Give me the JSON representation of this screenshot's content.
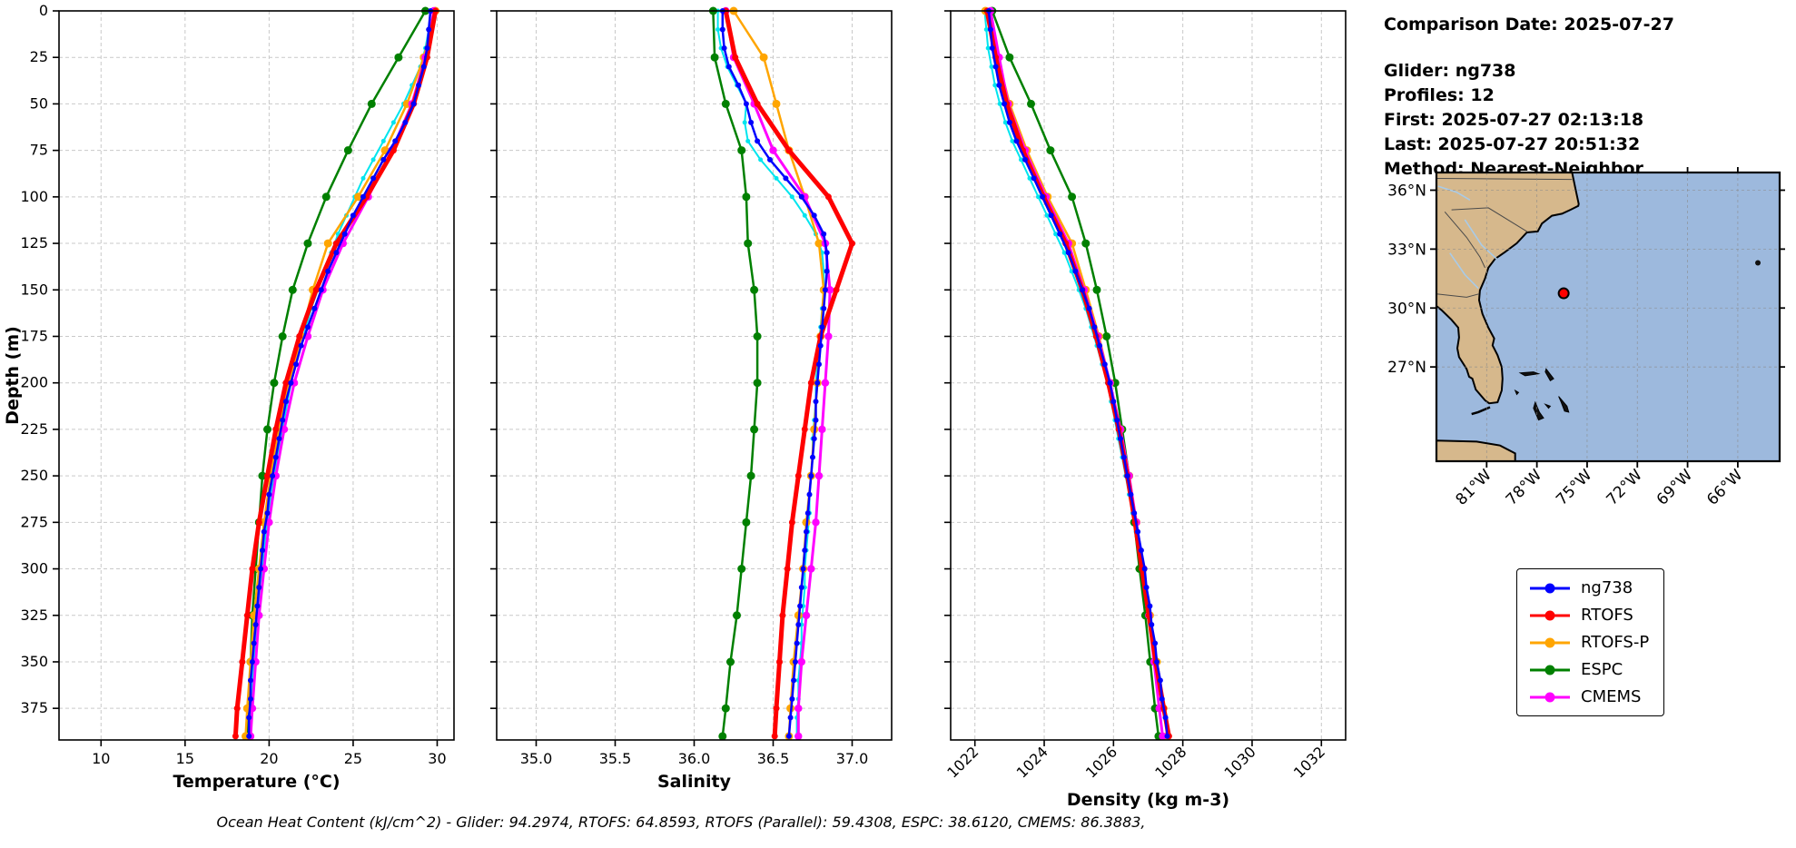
{
  "info_panel": {
    "comparison_date": "Comparison Date: 2025-07-27",
    "glider": "Glider: ng738",
    "profiles": "Profiles: 12",
    "first": "First: 2025-07-27 02:13:18",
    "last": "Last: 2025-07-27 20:51:32",
    "method": "Method: Nearest-Neighbor"
  },
  "legend": {
    "items": [
      {
        "label": "ng738",
        "color": "#0000ff"
      },
      {
        "label": "RTOFS",
        "color": "#ff0000"
      },
      {
        "label": "RTOFS-P",
        "color": "#ffa500"
      },
      {
        "label": "ESPC",
        "color": "#008000"
      },
      {
        "label": "CMEMS",
        "color": "#ff00ff"
      }
    ]
  },
  "caption": "Ocean Heat Content (kJ/cm^2) - Glider: 94.2974,  RTOFS: 64.8593,  RTOFS (Parallel): 59.4308,  ESPC: 38.6120,  CMEMS: 86.3883,",
  "chart_data": {
    "type": "line",
    "description": "Glider-vs-model vertical profiles; depth on y axis increasing downward",
    "ylabel": "Depth (m)",
    "ylim": [
      0,
      392
    ],
    "yticks": [
      0,
      25,
      50,
      75,
      100,
      125,
      150,
      175,
      200,
      225,
      250,
      275,
      300,
      325,
      350,
      375
    ],
    "depths_fine": [
      0,
      10,
      20,
      30,
      40,
      50,
      60,
      70,
      80,
      90,
      100,
      110,
      120,
      130,
      140,
      150,
      160,
      170,
      180,
      190,
      200,
      210,
      220,
      230,
      240,
      250,
      260,
      270,
      280,
      290,
      300,
      310,
      320,
      330,
      340,
      350,
      360,
      370,
      380,
      390
    ],
    "depths_coarse": [
      0,
      25,
      50,
      75,
      100,
      125,
      150,
      175,
      200,
      225,
      250,
      275,
      300,
      325,
      350,
      375,
      390
    ],
    "panels": [
      {
        "xlabel": "Temperature (°C)",
        "xlim": [
          7.5,
          31
        ],
        "xticks": [
          10,
          15,
          20,
          25,
          30
        ],
        "xtick_labels": [
          "10",
          "15",
          "20",
          "25",
          "30"
        ],
        "rotate_xticks": false,
        "series": [
          {
            "name": "ng738-raw",
            "color": "#00e5ee",
            "depths": "fine",
            "lw": 2,
            "r": 2.5,
            "values": [
              29.6,
              29.5,
              29.3,
              29.0,
              28.5,
              28.0,
              27.4,
              26.8,
              26.2,
              25.6,
              25.1,
              24.6,
              24.1,
              23.7,
              23.3,
              22.9,
              22.5,
              22.2,
              21.9,
              21.6,
              21.3,
              21.1,
              20.9,
              20.7,
              20.5,
              20.3,
              20.1,
              20.0,
              19.8,
              19.7,
              19.6,
              19.5,
              19.4,
              19.3,
              19.2,
              19.1,
              19.0,
              19.0,
              18.9,
              18.9
            ]
          },
          {
            "name": "ESPC",
            "color": "#008000",
            "depths": "coarse",
            "lw": 2.5,
            "r": 4.5,
            "values": [
              29.3,
              27.7,
              26.1,
              24.7,
              23.4,
              22.3,
              21.4,
              20.8,
              20.3,
              19.9,
              19.6,
              19.4,
              19.2,
              19.0,
              18.9,
              18.8,
              18.7
            ]
          },
          {
            "name": "RTOFS-P",
            "color": "#ffa500",
            "depths": "coarse",
            "lw": 2.5,
            "r": 4.5,
            "values": [
              29.9,
              29.2,
              28.2,
              26.9,
              25.3,
              23.5,
              22.6,
              21.9,
              21.2,
              20.6,
              20.1,
              19.7,
              19.4,
              19.1,
              18.9,
              18.7,
              18.6
            ]
          },
          {
            "name": "CMEMS",
            "color": "#ff00ff",
            "depths": "coarse",
            "lw": 3,
            "r": 4.2,
            "values": [
              29.8,
              29.3,
              28.5,
              27.3,
              25.9,
              24.4,
              23.2,
              22.3,
              21.5,
              20.9,
              20.4,
              20.0,
              19.7,
              19.4,
              19.2,
              19.0,
              18.9
            ]
          },
          {
            "name": "RTOFS",
            "color": "#ff0000",
            "depths": "coarse",
            "lw": 5,
            "r": 3.5,
            "values": [
              29.9,
              29.4,
              28.6,
              27.4,
              25.8,
              24.0,
              22.8,
              21.8,
              21.0,
              20.4,
              19.9,
              19.4,
              19.0,
              18.7,
              18.4,
              18.1,
              18.0
            ]
          },
          {
            "name": "ng738",
            "color": "#0000ff",
            "depths": "fine",
            "lw": 2.5,
            "r": 3,
            "values": [
              29.6,
              29.5,
              29.4,
              29.2,
              28.9,
              28.6,
              28.1,
              27.5,
              26.8,
              26.2,
              25.6,
              25.0,
              24.5,
              24.0,
              23.5,
              23.1,
              22.7,
              22.3,
              21.9,
              21.6,
              21.3,
              21.0,
              20.8,
              20.6,
              20.4,
              20.2,
              20.0,
              19.9,
              19.7,
              19.6,
              19.5,
              19.4,
              19.3,
              19.2,
              19.1,
              19.0,
              18.9,
              18.9,
              18.8,
              18.8
            ]
          }
        ]
      },
      {
        "xlabel": "Salinity",
        "xlim": [
          34.75,
          37.25
        ],
        "xticks": [
          35.0,
          35.5,
          36.0,
          36.5,
          37.0
        ],
        "xtick_labels": [
          "35.0",
          "35.5",
          "36.0",
          "36.5",
          "37.0"
        ],
        "rotate_xticks": false,
        "series": [
          {
            "name": "ng738-raw",
            "color": "#00e5ee",
            "depths": "fine",
            "lw": 2,
            "r": 2.5,
            "values": [
              36.15,
              36.15,
              36.17,
              36.21,
              36.27,
              36.33,
              36.32,
              36.34,
              36.42,
              36.52,
              36.62,
              36.7,
              36.77,
              36.81,
              36.82,
              36.82,
              36.81,
              36.8,
              36.79,
              36.78,
              36.77,
              36.77,
              36.76,
              36.75,
              36.75,
              36.74,
              36.73,
              36.73,
              36.72,
              36.71,
              36.7,
              36.7,
              36.69,
              36.68,
              36.68,
              36.67,
              36.66,
              36.66,
              36.65,
              36.65
            ]
          },
          {
            "name": "ESPC",
            "color": "#008000",
            "depths": "coarse",
            "lw": 2.5,
            "r": 4.5,
            "values": [
              36.12,
              36.13,
              36.2,
              36.3,
              36.33,
              36.34,
              36.38,
              36.4,
              36.4,
              36.38,
              36.36,
              36.33,
              36.3,
              36.27,
              36.23,
              36.2,
              36.18
            ]
          },
          {
            "name": "RTOFS-P",
            "color": "#ffa500",
            "depths": "coarse",
            "lw": 2.5,
            "r": 4.5,
            "values": [
              36.25,
              36.44,
              36.52,
              36.6,
              36.7,
              36.79,
              36.82,
              36.8,
              36.78,
              36.76,
              36.74,
              36.71,
              36.69,
              36.66,
              36.63,
              36.61,
              36.6
            ]
          },
          {
            "name": "CMEMS",
            "color": "#ff00ff",
            "depths": "coarse",
            "lw": 3,
            "r": 4.2,
            "values": [
              36.2,
              36.25,
              36.38,
              36.5,
              36.7,
              36.83,
              36.86,
              36.85,
              36.83,
              36.81,
              36.79,
              36.77,
              36.74,
              36.71,
              36.68,
              36.66,
              36.66
            ]
          },
          {
            "name": "RTOFS",
            "color": "#ff0000",
            "depths": "coarse",
            "lw": 5,
            "r": 3.5,
            "values": [
              36.2,
              36.26,
              36.4,
              36.6,
              36.85,
              37.0,
              36.9,
              36.8,
              36.74,
              36.7,
              36.66,
              36.62,
              36.59,
              36.56,
              36.54,
              36.52,
              36.51
            ]
          },
          {
            "name": "ng738",
            "color": "#0000ff",
            "depths": "fine",
            "lw": 2.5,
            "r": 3,
            "values": [
              36.18,
              36.18,
              36.19,
              36.22,
              36.28,
              36.33,
              36.36,
              36.4,
              36.48,
              36.58,
              36.68,
              36.76,
              36.82,
              36.84,
              36.84,
              36.83,
              36.82,
              36.81,
              36.8,
              36.79,
              36.78,
              36.77,
              36.77,
              36.76,
              36.75,
              36.74,
              36.73,
              36.72,
              36.71,
              36.7,
              36.69,
              36.68,
              36.67,
              36.66,
              36.65,
              36.64,
              36.63,
              36.62,
              36.61,
              36.6
            ]
          }
        ]
      },
      {
        "xlabel": "Density (kg m-3)",
        "xlim": [
          1021.3,
          1032.7
        ],
        "xticks": [
          1022,
          1024,
          1026,
          1028,
          1030,
          1032
        ],
        "xtick_labels": [
          "1022",
          "1024",
          "1026",
          "1028",
          "1030",
          "1032"
        ],
        "rotate_xticks": true,
        "series": [
          {
            "name": "ng738-raw",
            "color": "#00e5ee",
            "depths": "fine",
            "lw": 2,
            "r": 2.5,
            "values": [
              1022.28,
              1022.33,
              1022.38,
              1022.48,
              1022.58,
              1022.72,
              1022.88,
              1023.08,
              1023.33,
              1023.58,
              1023.83,
              1024.08,
              1024.33,
              1024.58,
              1024.79,
              1025.0,
              1025.2,
              1025.36,
              1025.52,
              1025.67,
              1025.82,
              1025.93,
              1026.04,
              1026.14,
              1026.25,
              1026.35,
              1026.45,
              1026.55,
              1026.65,
              1026.75,
              1026.85,
              1026.91,
              1027.01,
              1027.07,
              1027.17,
              1027.23,
              1027.33,
              1027.39,
              1027.49,
              1027.55
            ]
          },
          {
            "name": "ESPC",
            "color": "#008000",
            "depths": "coarse",
            "lw": 2.5,
            "r": 4.5,
            "values": [
              1022.5,
              1023.0,
              1023.62,
              1024.18,
              1024.8,
              1025.2,
              1025.52,
              1025.8,
              1026.05,
              1026.25,
              1026.45,
              1026.6,
              1026.75,
              1026.92,
              1027.06,
              1027.2,
              1027.3
            ]
          },
          {
            "name": "RTOFS-P",
            "color": "#ffa500",
            "depths": "coarse",
            "lw": 2.5,
            "r": 4.5,
            "values": [
              1022.3,
              1022.66,
              1023.0,
              1023.5,
              1024.1,
              1024.8,
              1025.2,
              1025.58,
              1025.9,
              1026.2,
              1026.45,
              1026.66,
              1026.86,
              1027.05,
              1027.25,
              1027.44,
              1027.55
            ]
          },
          {
            "name": "CMEMS",
            "color": "#ff00ff",
            "depths": "coarse",
            "lw": 3,
            "r": 4.2,
            "values": [
              1022.45,
              1022.7,
              1022.96,
              1023.45,
              1024.05,
              1024.7,
              1025.15,
              1025.55,
              1025.9,
              1026.2,
              1026.45,
              1026.66,
              1026.86,
              1027.02,
              1027.17,
              1027.32,
              1027.42
            ]
          },
          {
            "name": "RTOFS",
            "color": "#ff0000",
            "depths": "coarse",
            "lw": 5,
            "r": 3.5,
            "values": [
              1022.35,
              1022.6,
              1022.92,
              1023.38,
              1023.98,
              1024.62,
              1025.1,
              1025.5,
              1025.85,
              1026.15,
              1026.4,
              1026.62,
              1026.82,
              1027.02,
              1027.22,
              1027.45,
              1027.6
            ]
          },
          {
            "name": "ng738",
            "color": "#0000ff",
            "depths": "fine",
            "lw": 2.5,
            "r": 3,
            "values": [
              1022.4,
              1022.45,
              1022.5,
              1022.6,
              1022.7,
              1022.85,
              1023.0,
              1023.2,
              1023.45,
              1023.7,
              1023.95,
              1024.2,
              1024.45,
              1024.7,
              1024.9,
              1025.1,
              1025.3,
              1025.45,
              1025.6,
              1025.75,
              1025.9,
              1026.0,
              1026.1,
              1026.2,
              1026.3,
              1026.4,
              1026.5,
              1026.6,
              1026.7,
              1026.8,
              1026.9,
              1026.95,
              1027.05,
              1027.1,
              1027.2,
              1027.25,
              1027.35,
              1027.4,
              1027.5,
              1027.55
            ]
          }
        ]
      }
    ],
    "map": {
      "lon_tick_labels": [
        "81°W",
        "78°W",
        "75°W",
        "72°W",
        "69°W",
        "66°W"
      ],
      "lon_tick_values": [
        -81,
        -78,
        -75,
        -72,
        -69,
        -66
      ],
      "lat_tick_labels": [
        "36°N",
        "33°N",
        "30°N",
        "27°N"
      ],
      "lat_tick_values": [
        36,
        33,
        30,
        27
      ],
      "extent": {
        "lon_min": -84.0,
        "lon_max": -63.5,
        "lat_min": 22.2,
        "lat_max": 36.9
      },
      "glider_position": {
        "lon": -76.4,
        "lat": 30.75
      },
      "colors": {
        "land": "#d6b88c",
        "ocean": "#9db9dd",
        "coast": "#000000",
        "river": "#a9cbe8",
        "border": "#4a4a4a"
      }
    }
  }
}
